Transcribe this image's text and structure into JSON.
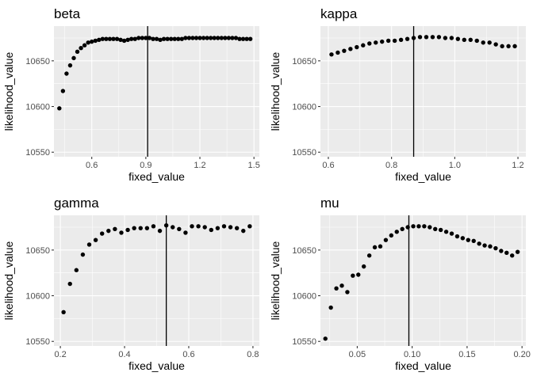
{
  "chart_data": [
    {
      "type": "scatter",
      "title": "beta",
      "xlabel": "fixed_value",
      "ylabel": "likelihood_value",
      "xlim": [
        0.39,
        1.53
      ],
      "ylim": [
        10545,
        10688
      ],
      "xticks": [
        0.6,
        0.9,
        1.2,
        1.5
      ],
      "xtick_labels": [
        "0.6",
        "0.9",
        "1.2",
        "1.5"
      ],
      "yticks": [
        10550,
        10600,
        10650
      ],
      "ytick_labels": [
        "10550",
        "10600",
        "10650"
      ],
      "vline": 0.91,
      "grid": true,
      "x": [
        0.42,
        0.44,
        0.46,
        0.48,
        0.5,
        0.52,
        0.54,
        0.56,
        0.58,
        0.6,
        0.62,
        0.64,
        0.66,
        0.68,
        0.7,
        0.72,
        0.74,
        0.76,
        0.78,
        0.8,
        0.82,
        0.84,
        0.86,
        0.88,
        0.9,
        0.92,
        0.94,
        0.96,
        0.98,
        1.0,
        1.02,
        1.04,
        1.06,
        1.08,
        1.1,
        1.12,
        1.14,
        1.16,
        1.18,
        1.2,
        1.22,
        1.24,
        1.26,
        1.28,
        1.3,
        1.32,
        1.34,
        1.36,
        1.38,
        1.4,
        1.42,
        1.44,
        1.46,
        1.48
      ],
      "y": [
        10598,
        10617,
        10636,
        10645,
        10653,
        10660,
        10664,
        10667,
        10670,
        10671,
        10672,
        10673,
        10674,
        10674,
        10674,
        10674,
        10674,
        10673,
        10672,
        10673,
        10674,
        10674,
        10675,
        10675,
        10675,
        10675,
        10674,
        10674,
        10673,
        10674,
        10674,
        10674,
        10674,
        10674,
        10674,
        10675,
        10675,
        10675,
        10675,
        10675,
        10675,
        10675,
        10675,
        10675,
        10675,
        10675,
        10675,
        10675,
        10675,
        10675,
        10674,
        10674,
        10674,
        10674
      ]
    },
    {
      "type": "scatter",
      "title": "kappa",
      "xlabel": "fixed_value",
      "ylabel": "likelihood_value",
      "xlim": [
        0.575,
        1.225
      ],
      "ylim": [
        10545,
        10688
      ],
      "xticks": [
        0.6,
        0.8,
        1.0,
        1.2
      ],
      "xtick_labels": [
        "0.6",
        "0.8",
        "1.0",
        "1.2"
      ],
      "yticks": [
        10550,
        10600,
        10650
      ],
      "ytick_labels": [
        "10550",
        "10600",
        "10650"
      ],
      "vline": 0.87,
      "grid": true,
      "x": [
        0.61,
        0.63,
        0.65,
        0.67,
        0.69,
        0.71,
        0.73,
        0.75,
        0.77,
        0.79,
        0.81,
        0.83,
        0.85,
        0.87,
        0.89,
        0.91,
        0.93,
        0.95,
        0.97,
        0.99,
        1.01,
        1.03,
        1.05,
        1.07,
        1.09,
        1.11,
        1.13,
        1.15,
        1.17,
        1.19
      ],
      "y": [
        10657,
        10659,
        10661,
        10663,
        10665,
        10667,
        10669,
        10670,
        10671,
        10672,
        10672,
        10673,
        10674,
        10675,
        10676,
        10676,
        10676,
        10676,
        10675,
        10675,
        10674,
        10673,
        10673,
        10672,
        10670,
        10670,
        10668,
        10666,
        10666,
        10666
      ]
    },
    {
      "type": "scatter",
      "title": "gamma",
      "xlabel": "fixed_value",
      "ylabel": "likelihood_value",
      "xlim": [
        0.18,
        0.82
      ],
      "ylim": [
        10545,
        10688
      ],
      "xticks": [
        0.2,
        0.4,
        0.6,
        0.8
      ],
      "xtick_labels": [
        "0.2",
        "0.4",
        "0.6",
        "0.8"
      ],
      "yticks": [
        10550,
        10600,
        10650
      ],
      "ytick_labels": [
        "10550",
        "10600",
        "10650"
      ],
      "vline": 0.53,
      "grid": true,
      "x": [
        0.21,
        0.23,
        0.25,
        0.27,
        0.29,
        0.31,
        0.33,
        0.35,
        0.37,
        0.39,
        0.41,
        0.43,
        0.45,
        0.47,
        0.49,
        0.51,
        0.53,
        0.55,
        0.57,
        0.59,
        0.61,
        0.63,
        0.65,
        0.67,
        0.69,
        0.71,
        0.73,
        0.75,
        0.77,
        0.79
      ],
      "y": [
        10582,
        10613,
        10628,
        10645,
        10656,
        10661,
        10668,
        10671,
        10673,
        10669,
        10672,
        10674,
        10674,
        10674,
        10676,
        10671,
        10677,
        10675,
        10673,
        10669,
        10676,
        10676,
        10675,
        10672,
        10674,
        10676,
        10675,
        10674,
        10671,
        10676
      ]
    },
    {
      "type": "scatter",
      "title": "mu",
      "xlabel": "fixed_value",
      "ylabel": "likelihood_value",
      "xlim": [
        0.0165,
        0.2035
      ],
      "ylim": [
        10545,
        10688
      ],
      "xticks": [
        0.05,
        0.1,
        0.15,
        0.2
      ],
      "xtick_labels": [
        "0.05",
        "0.10",
        "0.15",
        "0.20"
      ],
      "yticks": [
        10550,
        10600,
        10650
      ],
      "ytick_labels": [
        "10550",
        "10600",
        "10650"
      ],
      "vline": 0.097,
      "grid": true,
      "x": [
        0.021,
        0.026,
        0.031,
        0.036,
        0.041,
        0.046,
        0.051,
        0.056,
        0.061,
        0.066,
        0.071,
        0.076,
        0.081,
        0.086,
        0.091,
        0.096,
        0.101,
        0.106,
        0.111,
        0.116,
        0.121,
        0.126,
        0.131,
        0.136,
        0.141,
        0.146,
        0.151,
        0.156,
        0.161,
        0.166,
        0.171,
        0.176,
        0.181,
        0.186,
        0.191,
        0.196
      ],
      "y": [
        10553,
        10587,
        10608,
        10611,
        10604,
        10622,
        10623,
        10632,
        10644,
        10653,
        10654,
        10661,
        10666,
        10670,
        10673,
        10675,
        10676,
        10676,
        10676,
        10675,
        10673,
        10672,
        10670,
        10668,
        10665,
        10663,
        10661,
        10660,
        10657,
        10655,
        10654,
        10652,
        10649,
        10647,
        10644,
        10648
      ]
    }
  ]
}
